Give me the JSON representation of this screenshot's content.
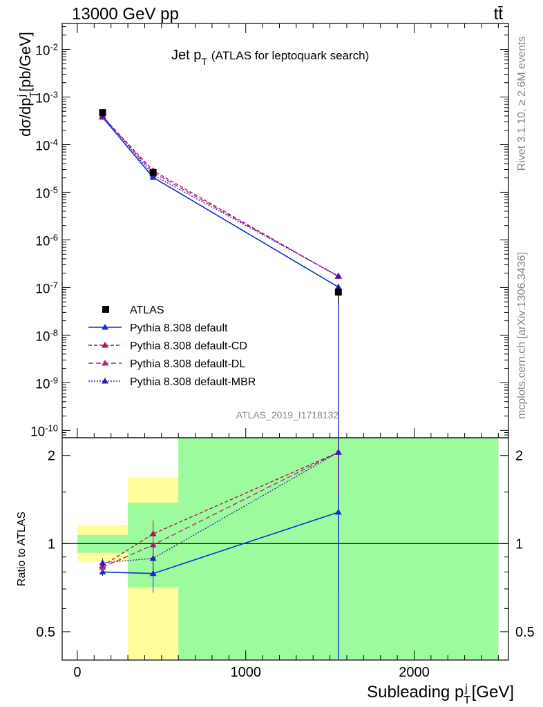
{
  "header": {
    "left": "13000 GeV pp",
    "right": "tt̄"
  },
  "side_labels": {
    "rivet": "Rivet 3.1.10, ≥ 2.6M events",
    "mcplots": "mcplots.cern.ch [arXiv:1306.3436]"
  },
  "analysis_id": "ATLAS_2019_I1718132",
  "chart_data": {
    "type": "scatter",
    "title": "Jet p_T (ATLAS for leptoquark search)",
    "xlabel": "Subleading p_T^j [GeV]",
    "ylabel": "dσ/dp_T^j [pb/GeV]",
    "ratio_ylabel": "Ratio to ATLAS",
    "xlim": [
      -90,
      2560
    ],
    "ylim": [
      7e-11,
      0.035
    ],
    "yscale": "log",
    "ratio_ylim": [
      0.4,
      2.3
    ],
    "ratio_yscale": "log",
    "x_ticks": [
      0,
      1000,
      2000
    ],
    "x_tick_labels": [
      "0",
      "1000",
      "2000"
    ],
    "y_ticks": [
      1e-10,
      1e-09,
      1e-08,
      1e-07,
      1e-06,
      1e-05,
      0.0001,
      0.001,
      0.01
    ],
    "y_tick_labels": [
      "10^-10",
      "10^-9",
      "10^-8",
      "10^-7",
      "10^-6",
      "10^-5",
      "10^-4",
      "10^-3",
      "10^-2"
    ],
    "ratio_ticks": [
      0.5,
      1,
      2
    ],
    "ratio_tick_labels": [
      "0.5",
      "1",
      "2"
    ],
    "bins": [
      [
        0,
        300
      ],
      [
        300,
        600
      ],
      [
        600,
        2500
      ]
    ],
    "x": [
      150,
      450,
      1550
    ],
    "data": {
      "name": "ATLAS",
      "values": [
        0.00047,
        2.6e-05,
        8e-08
      ],
      "err_lo": [
        3e-05,
        2e-06,
        3.5e-08
      ],
      "err_hi": [
        3e-05,
        2e-06,
        3.5e-08
      ],
      "color": "#000000"
    },
    "bands": {
      "stat_lo": [
        0.93,
        0.71,
        0.0
      ],
      "stat_hi": [
        1.07,
        1.38,
        2.35
      ],
      "total_lo": [
        0.87,
        0.0,
        0.0
      ],
      "total_hi": [
        1.16,
        1.68,
        2.35
      ],
      "stat_color": "#9cfb9c",
      "total_color": "#fffe9c"
    },
    "series": [
      {
        "name": "Pythia 8.308 default",
        "values": [
          0.000375,
          2.05e-05,
          1.02e-07
        ],
        "ratio": [
          0.8,
          0.79,
          1.28
        ],
        "ratio_err": [
          0.025,
          0.11,
          0.6
        ],
        "color": "#0d2fd4",
        "dash": ""
      },
      {
        "name": "Pythia 8.308 default-CD",
        "values": [
          0.00039,
          2.85e-05,
          1.7e-07
        ],
        "ratio": [
          0.84,
          1.08,
          2.05
        ],
        "ratio_err": [
          0.03,
          0.12,
          0.6
        ],
        "color": "#b01050",
        "dash": "5,3"
      },
      {
        "name": "Pythia 8.308 default-DL",
        "values": [
          0.00039,
          2.6e-05,
          1.7e-07
        ],
        "ratio": [
          0.83,
          0.99,
          2.05
        ],
        "ratio_err": [
          0.03,
          0.12,
          0.6
        ],
        "color": "#b0207a",
        "dash": "7,4"
      },
      {
        "name": "Pythia 8.308 default-MBR",
        "values": [
          0.000405,
          2.3e-05,
          1.75e-07
        ],
        "ratio": [
          0.86,
          0.89,
          2.05
        ],
        "ratio_err": [
          0.03,
          0.1,
          0.6
        ],
        "color": "#3a16b8",
        "dash": "2,2"
      }
    ],
    "legend": "middle-left"
  }
}
